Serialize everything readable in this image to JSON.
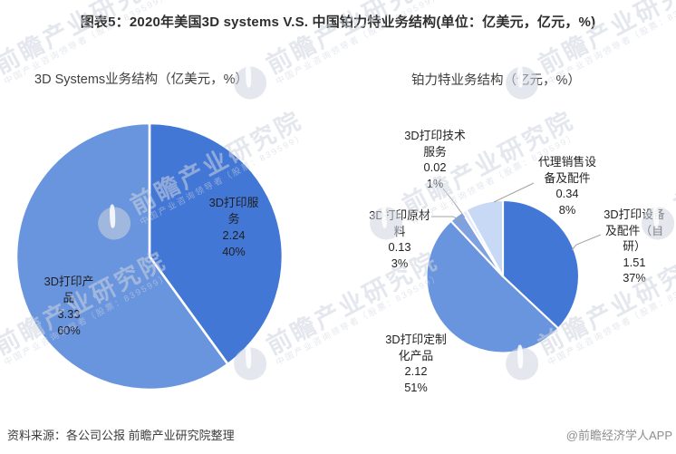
{
  "page": {
    "title": "图表5：2020年美国3D systems V.S. 中国铂力特业务结构(单位：亿美元，亿元，%)",
    "source_note": "资料来源：各公司公报 前瞻产业研究院整理",
    "credit": "@前瞻经济学人APP"
  },
  "watermark": {
    "brand": "前瞻产业研究院",
    "tagline": "中国产业咨询领导者（股票：839599）"
  },
  "chart_data": [
    {
      "type": "pie",
      "title": "3D Systems业务结构（亿美元，%）",
      "unit": "亿美元",
      "start_angle_deg": 0,
      "direction": "clockwise",
      "label_style": "inside",
      "legend": "none",
      "slices": [
        {
          "label": "3D打印服务",
          "value": 2.24,
          "pct": 40,
          "color": "#4377D6"
        },
        {
          "label": "3D打印产品",
          "value": 3.33,
          "pct": 60,
          "color": "#6994DE"
        }
      ]
    },
    {
      "type": "pie",
      "title": "铂力特业务结构（亿元，%）",
      "unit": "亿元",
      "start_angle_deg": 0,
      "direction": "clockwise",
      "label_style": "outside",
      "legend": "none",
      "slices": [
        {
          "label": "3D打印设备及配件（自研）",
          "value": 1.51,
          "pct": 37,
          "color": "#4377D6"
        },
        {
          "label": "3D打印定制化产品",
          "value": 2.12,
          "pct": 51,
          "color": "#6994DE"
        },
        {
          "label": "3D打印原材料",
          "value": 0.13,
          "pct": 3,
          "color": "#7FA1E0"
        },
        {
          "label": "3D打印技术服务",
          "value": 0.02,
          "pct": 1,
          "color": "#E2EBF9"
        },
        {
          "label": "代理销售设备及配件",
          "value": 0.34,
          "pct": 8,
          "color": "#C7D9F4"
        }
      ]
    }
  ]
}
